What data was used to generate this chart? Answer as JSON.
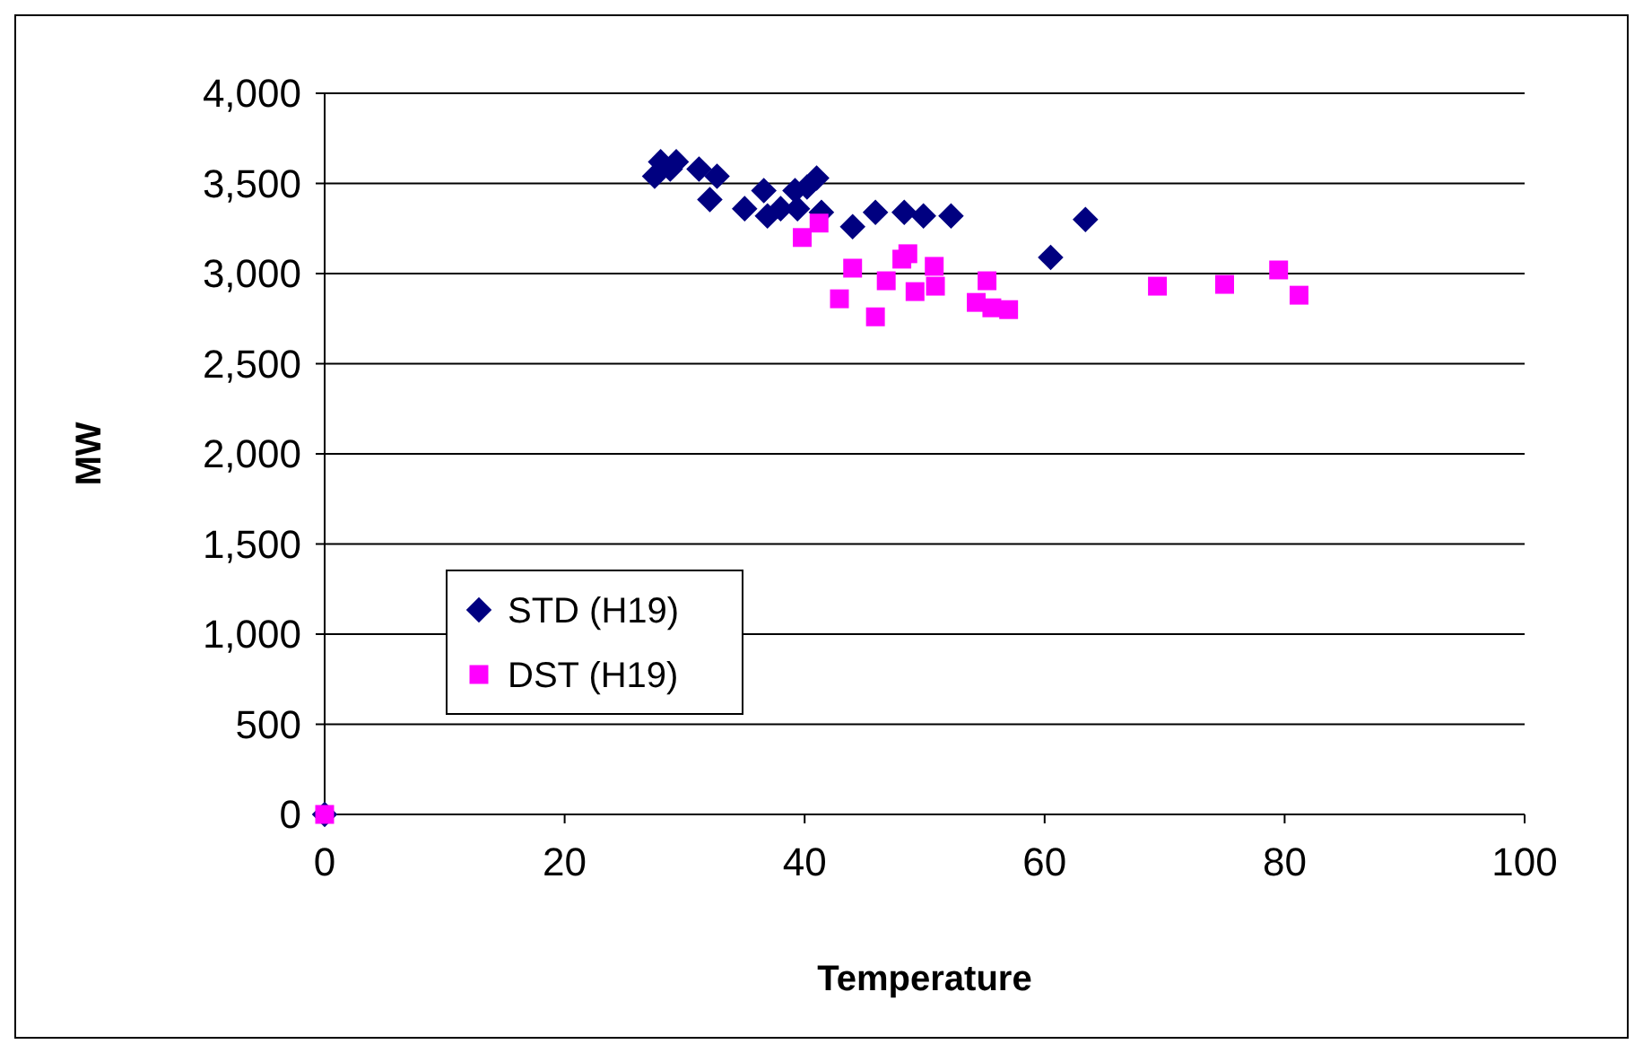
{
  "chart_data": {
    "type": "scatter",
    "xlabel": "Temperature",
    "ylabel": "MW",
    "xlim": [
      0,
      100
    ],
    "xticks": [
      0,
      20,
      40,
      60,
      80,
      100
    ],
    "ylim": [
      0,
      4000
    ],
    "yticks": [
      {
        "value": 0,
        "label": "0"
      },
      {
        "value": 500,
        "label": "500"
      },
      {
        "value": 1000,
        "label": "1,000"
      },
      {
        "value": 1500,
        "label": "1,500"
      },
      {
        "value": 2000,
        "label": "2,000"
      },
      {
        "value": 2500,
        "label": "2,500"
      },
      {
        "value": 3000,
        "label": "3,000"
      },
      {
        "value": 3500,
        "label": "3,500"
      },
      {
        "value": 4000,
        "label": "4,000"
      }
    ],
    "grid": "y",
    "legend": "left",
    "series": [
      {
        "name": "STD (H19)",
        "color": "#000080",
        "marker": "diamond",
        "x": [
          0,
          27.5,
          28,
          28.8,
          29.3,
          31.2,
          32.7,
          32.1,
          35,
          36.6,
          36.9,
          38,
          39.2,
          39.4,
          40.2,
          41,
          41.4,
          44,
          45.9,
          48.3,
          49.9,
          52.2,
          60.5,
          63.4
        ],
        "values": [
          0,
          3540,
          3620,
          3580,
          3620,
          3580,
          3540,
          3410,
          3360,
          3460,
          3320,
          3360,
          3460,
          3360,
          3480,
          3530,
          3340,
          3260,
          3340,
          3340,
          3320,
          3320,
          3090,
          3300
        ]
      },
      {
        "name": "DST (H19)",
        "color": "#ff00ff",
        "marker": "square",
        "x": [
          0,
          39.8,
          41.2,
          44,
          42.9,
          45.9,
          46.8,
          48.1,
          48.6,
          49.2,
          50.8,
          50.9,
          55.2,
          54.3,
          55.6,
          57,
          69.4,
          75,
          79.5,
          81.2
        ],
        "values": [
          0,
          3200,
          3280,
          3030,
          2860,
          2760,
          2960,
          3080,
          3110,
          2900,
          3040,
          2930,
          2960,
          2840,
          2810,
          2800,
          2930,
          2940,
          3020,
          2880
        ]
      }
    ]
  }
}
